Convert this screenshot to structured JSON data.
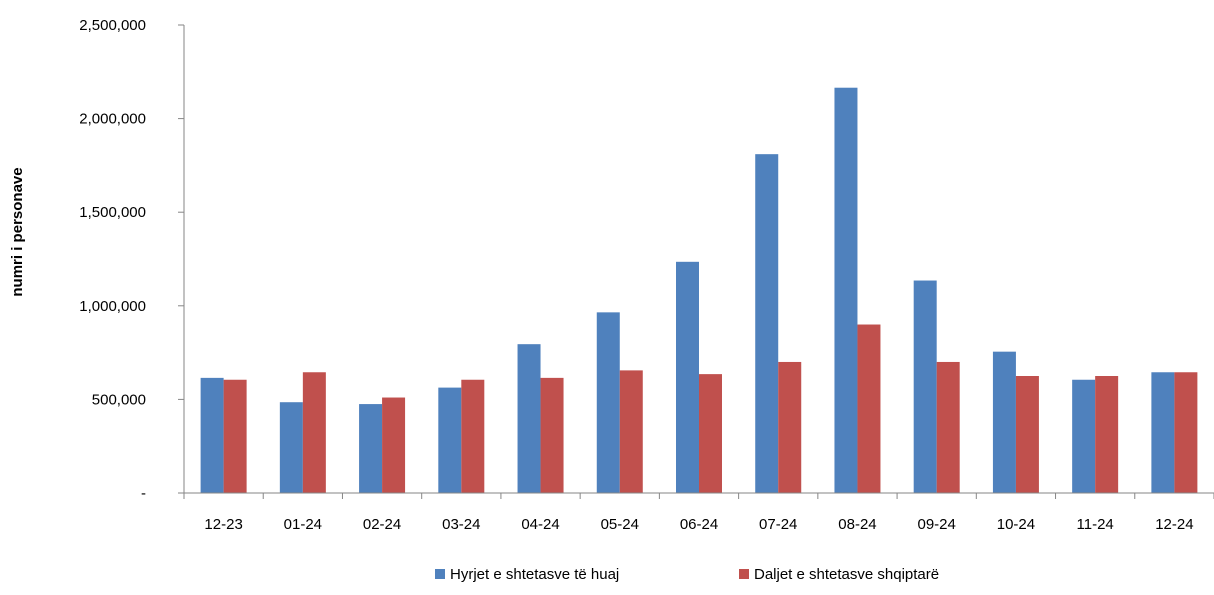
{
  "chart_data": {
    "type": "bar",
    "title": "",
    "xlabel": "",
    "ylabel": "numri i personave",
    "categories": [
      "12-23",
      "01-24",
      "02-24",
      "03-24",
      "04-24",
      "05-24",
      "06-24",
      "07-24",
      "08-24",
      "09-24",
      "10-24",
      "11-24",
      "12-24"
    ],
    "series": [
      {
        "name": "Hyrjet e shtetasve të huaj",
        "color": "#4F81BD",
        "values": [
          615000,
          485000,
          475000,
          563000,
          795000,
          965000,
          1235000,
          1810000,
          2165000,
          1135000,
          755000,
          605000,
          645000
        ]
      },
      {
        "name": "Daljet e shtetasve shqiptarë",
        "color": "#C0504D",
        "values": [
          605000,
          645000,
          510000,
          605000,
          615000,
          655000,
          635000,
          700000,
          900000,
          700000,
          625000,
          625000,
          645000
        ]
      }
    ],
    "ylim": [
      0,
      2500000
    ],
    "yticks": [
      0,
      500000,
      1000000,
      1500000,
      2000000,
      2500000
    ],
    "ytick_labels": [
      "-",
      "500,000",
      "1,000,000",
      "1,500,000",
      "2,000,000",
      "2,500,000"
    ],
    "grid": false,
    "legend_position": "bottom"
  }
}
